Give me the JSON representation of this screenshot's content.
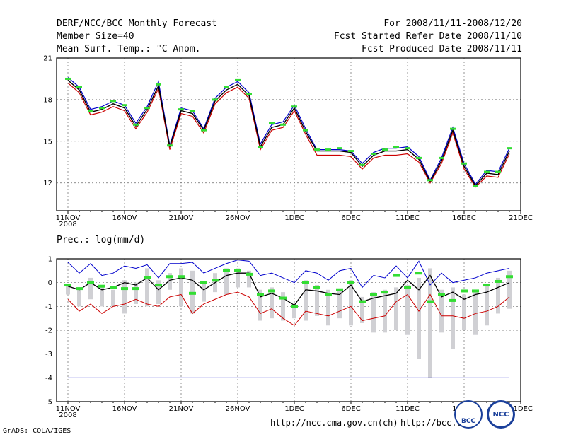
{
  "header": {
    "title": "DERF/NCC/BCC Monthly Forecast",
    "member_size": "Member Size=40",
    "variable": "Mean Surf. Temp.: °C Anom.",
    "period": "For 2008/11/11-2008/12/20",
    "refer_date": "Fcst Started Refer Date 2008/11/10",
    "produced_date": "Fcst Produced Date 2008/11/11"
  },
  "precip_label": "Prec.: log(mm/d)",
  "footer": {
    "grads": "GrADS: COLA/IGES",
    "url1": "http://ncc.cma.gov.cn(ch)",
    "url2": "http://bcc.c",
    "logo_bcc": "BCC",
    "logo_ncc": "NCC"
  },
  "colors": {
    "upper": "#0000cc",
    "lower": "#cc0000",
    "mean": "#000000",
    "obs": "#33dd33",
    "spread": "#d0d0d4",
    "grid": "#666666"
  },
  "chart_data": [
    {
      "type": "line",
      "title": "Mean Surf. Temp.: °C Anom.",
      "xlabel": "",
      "ylabel": "",
      "x_ticks": [
        "11NOV",
        "16NOV",
        "21NOV",
        "26NOV",
        "1DEC",
        "6DEC",
        "11DEC",
        "16DEC",
        "21DEC"
      ],
      "x_year": "2008",
      "ylim": [
        10,
        21
      ],
      "y_ticks": [
        "12",
        "15",
        "18",
        "21"
      ],
      "series": [
        {
          "name": "ensemble max",
          "values": [
            19.6,
            18.9,
            17.3,
            17.5,
            17.9,
            17.6,
            16.3,
            17.5,
            19.3,
            14.7,
            17.4,
            17.2,
            15.9,
            18.1,
            18.9,
            19.3,
            18.5,
            14.8,
            16.2,
            16.4,
            17.6,
            15.9,
            14.4,
            14.4,
            14.4,
            14.3,
            13.4,
            14.2,
            14.5,
            14.5,
            14.6,
            13.9,
            12.2,
            13.8,
            16.0,
            13.4,
            11.9,
            12.9,
            12.8,
            14.5
          ]
        },
        {
          "name": "ensemble mean",
          "values": [
            19.4,
            18.7,
            17.1,
            17.3,
            17.7,
            17.4,
            16.1,
            17.3,
            19.0,
            14.6,
            17.2,
            17.0,
            15.8,
            17.9,
            18.7,
            19.1,
            18.3,
            14.6,
            16.0,
            16.2,
            17.4,
            15.7,
            14.3,
            14.3,
            14.3,
            14.2,
            13.2,
            14.0,
            14.3,
            14.3,
            14.4,
            13.7,
            12.1,
            13.6,
            15.8,
            13.2,
            11.8,
            12.7,
            12.6,
            14.3
          ]
        },
        {
          "name": "ensemble min",
          "values": [
            19.2,
            18.5,
            16.9,
            17.1,
            17.5,
            17.2,
            15.9,
            17.1,
            18.8,
            14.4,
            17.0,
            16.8,
            15.6,
            17.7,
            18.5,
            18.9,
            18.1,
            14.4,
            15.8,
            16.0,
            17.2,
            15.5,
            14.0,
            14.0,
            14.0,
            13.9,
            13.0,
            13.8,
            14.0,
            14.0,
            14.1,
            13.5,
            12.0,
            13.4,
            15.6,
            13.0,
            11.7,
            12.5,
            12.4,
            14.1
          ]
        },
        {
          "name": "observed",
          "values": [
            19.5,
            18.9,
            17.2,
            17.4,
            17.9,
            17.6,
            16.2,
            17.4,
            19.1,
            14.7,
            17.3,
            17.2,
            15.8,
            18.0,
            18.9,
            19.4,
            18.4,
            14.6,
            16.3,
            16.2,
            17.5,
            15.8,
            14.4,
            14.4,
            14.5,
            14.3,
            13.3,
            14.1,
            14.4,
            14.6,
            14.5,
            13.8,
            12.2,
            13.8,
            15.9,
            13.4,
            11.8,
            12.8,
            12.8,
            14.5
          ]
        }
      ]
    },
    {
      "type": "line",
      "title": "Prec.: log(mm/d)",
      "xlabel": "",
      "ylabel": "",
      "x_ticks": [
        "11NOV",
        "16NOV",
        "21NOV",
        "26NOV",
        "1DEC",
        "6DEC",
        "11DEC",
        "16DEC",
        "21DEC"
      ],
      "x_year": "2008",
      "ylim": [
        -5,
        1
      ],
      "y_ticks": [
        "1",
        "0",
        "-1",
        "-2",
        "-3",
        "-4",
        "-5"
      ],
      "climatology_line": -4,
      "series": [
        {
          "name": "upper bound",
          "values": [
            0.85,
            0.4,
            0.8,
            0.3,
            0.4,
            0.7,
            0.6,
            0.75,
            0.2,
            0.8,
            0.8,
            0.85,
            0.4,
            0.6,
            0.8,
            0.95,
            0.9,
            0.3,
            0.4,
            0.2,
            0.0,
            0.5,
            0.4,
            0.1,
            0.5,
            0.6,
            -0.2,
            0.3,
            0.2,
            0.7,
            0.2,
            0.9,
            -0.1,
            0.4,
            0.0,
            0.1,
            0.2,
            0.4,
            0.5,
            0.6
          ]
        },
        {
          "name": "ensemble mean",
          "values": [
            -0.15,
            -0.3,
            0.0,
            -0.3,
            -0.2,
            0.0,
            -0.1,
            0.2,
            -0.3,
            0.1,
            0.2,
            0.1,
            -0.3,
            0.0,
            0.3,
            0.4,
            0.4,
            -0.6,
            -0.45,
            -0.65,
            -0.95,
            -0.3,
            -0.35,
            -0.45,
            -0.5,
            -0.1,
            -0.8,
            -0.65,
            -0.55,
            -0.45,
            0.1,
            -0.3,
            0.3,
            -0.6,
            -0.4,
            -0.7,
            -0.5,
            -0.4,
            -0.2,
            0.0
          ]
        },
        {
          "name": "lower bound",
          "values": [
            -0.7,
            -1.2,
            -0.9,
            -1.3,
            -1.0,
            -0.9,
            -0.7,
            -0.9,
            -1.0,
            -0.6,
            -0.5,
            -1.3,
            -0.9,
            -0.7,
            -0.5,
            -0.4,
            -0.6,
            -1.3,
            -1.1,
            -1.5,
            -1.8,
            -1.2,
            -1.3,
            -1.4,
            -1.2,
            -1.0,
            -1.6,
            -1.5,
            -1.4,
            -0.8,
            -0.5,
            -1.2,
            -0.5,
            -1.4,
            -1.4,
            -1.5,
            -1.3,
            -1.2,
            -1.0,
            -0.6
          ]
        },
        {
          "name": "observed",
          "values": [
            -0.1,
            -0.25,
            0.0,
            -0.15,
            -0.2,
            -0.25,
            -0.25,
            0.2,
            -0.1,
            0.25,
            0.25,
            -0.45,
            0.0,
            0.1,
            0.5,
            0.5,
            0.35,
            -0.5,
            -0.35,
            -0.65,
            -1.0,
            0.0,
            -0.2,
            -0.5,
            -0.3,
            0.0,
            -0.8,
            -0.5,
            -0.4,
            0.3,
            -0.2,
            0.4,
            -0.8,
            -0.5,
            -0.75,
            -0.35,
            -0.35,
            -0.1,
            0.05,
            0.25
          ]
        },
        {
          "name": "spread top",
          "values": [
            -0.1,
            -0.2,
            0.2,
            -0.2,
            -0.3,
            0.1,
            0.0,
            0.6,
            0.1,
            0.4,
            0.6,
            0.5,
            0.0,
            0.4,
            0.6,
            0.6,
            0.5,
            -0.3,
            -0.2,
            -0.4,
            -0.9,
            0.1,
            -0.1,
            -0.3,
            -0.3,
            0.1,
            -0.6,
            -0.4,
            -0.3,
            -0.2,
            -0.1,
            0.2,
            0.6,
            -0.3,
            -0.2,
            -0.5,
            -0.4,
            -0.1,
            0.2,
            0.5
          ]
        },
        {
          "name": "spread bottom",
          "values": [
            -0.5,
            -1.0,
            -0.7,
            -1.0,
            -1.0,
            -1.3,
            -0.9,
            -1.0,
            -0.9,
            -0.3,
            -1.0,
            -1.3,
            -0.8,
            -0.4,
            -0.5,
            -0.2,
            -0.2,
            -1.6,
            -1.5,
            -1.6,
            -1.5,
            -1.6,
            -1.4,
            -1.8,
            -1.5,
            -1.8,
            -1.7,
            -2.1,
            -2.1,
            -2.0,
            -2.2,
            -3.2,
            -4.0,
            -2.1,
            -2.8,
            -2.0,
            -2.2,
            -1.8,
            -1.3,
            -1.1
          ]
        }
      ]
    }
  ]
}
